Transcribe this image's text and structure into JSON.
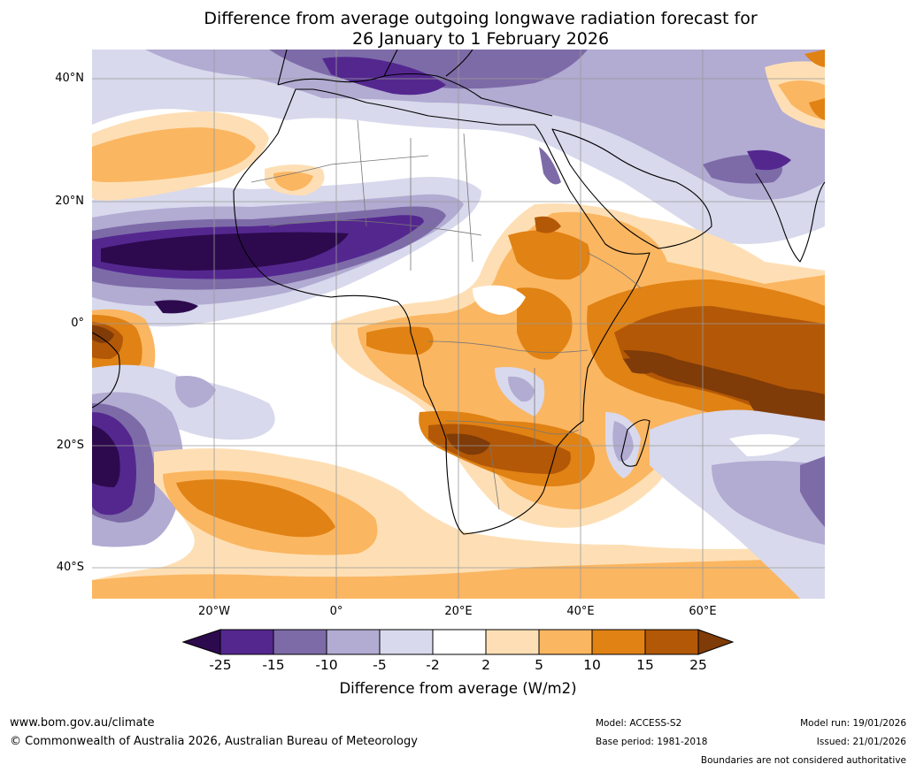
{
  "title": {
    "line1": "Difference from average outgoing longwave radiation forecast for",
    "line2": "26 January to 1 February 2026"
  },
  "map": {
    "lat_labels": [
      "40°N",
      "20°N",
      "0°",
      "20°S",
      "40°S"
    ],
    "lon_labels": [
      "20°W",
      "0°",
      "20°E",
      "40°E",
      "60°E"
    ],
    "extent": {
      "lon": [
        -40,
        80
      ],
      "lat": [
        -45,
        45
      ]
    }
  },
  "colorbar": {
    "title": "Difference from average (W/m2)",
    "ticks": [
      "-25",
      "-15",
      "-10",
      "-5",
      "-2",
      "2",
      "5",
      "10",
      "15",
      "25"
    ],
    "colors": [
      "#2d0a4e",
      "#54278f",
      "#7d6ba8",
      "#b2abd2",
      "#d8d9ec",
      "#ffffff",
      "#fedfb5",
      "#fbb661",
      "#e08214",
      "#b35806",
      "#7f3b08"
    ]
  },
  "footer": {
    "url": "www.bom.gov.au/climate",
    "copyright": "© Commonwealth of Australia 2026, Australian Bureau of Meteorology",
    "model": "Model: ACCESS-S2",
    "base_period": "Base period: 1981-2018",
    "model_run": "Model run: 19/01/2026",
    "issued": "Issued: 21/01/2026",
    "disclaimer": "Boundaries are not considered authoritative"
  }
}
